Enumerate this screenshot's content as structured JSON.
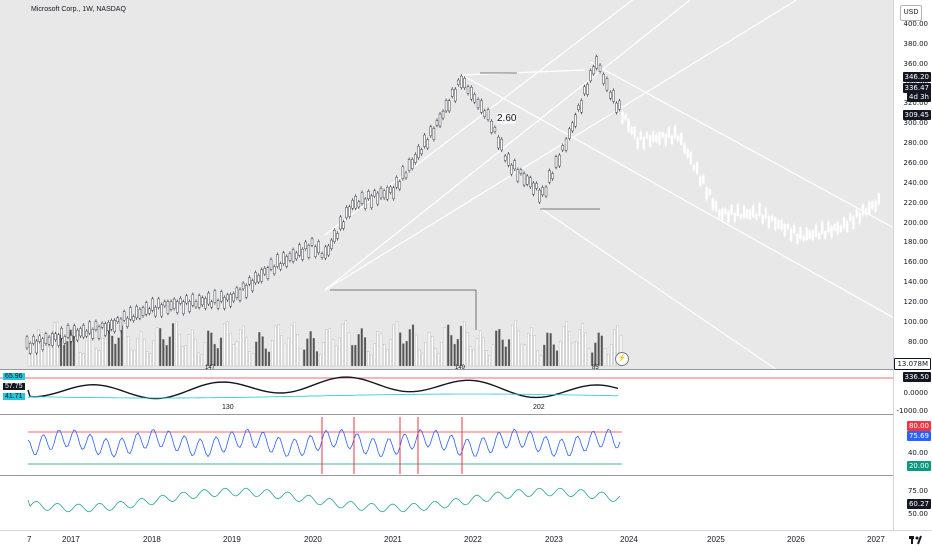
{
  "header": {
    "title": "Microsoft Corp., 1W, NASDAQ",
    "currency": "USD"
  },
  "price_axis": {
    "ticks": [
      "400.00",
      "380.00",
      "360.00",
      "340.00",
      "320.00",
      "300.00",
      "280.00",
      "260.00",
      "240.00",
      "220.00",
      "200.00",
      "180.00",
      "160.00",
      "140.00",
      "120.00",
      "100.00",
      "80.00"
    ],
    "tags": {
      "last_price": "346.20",
      "current_price": "336.47",
      "countdown": "4d 3h",
      "level": "309.45",
      "volume": "13.078M"
    }
  },
  "annotations": {
    "pitchfork_value": "2.60",
    "vol_marker_1": "147",
    "vol_marker_2": "149",
    "vol_marker_3": "85"
  },
  "osc1": {
    "left_vals": [
      "65.96",
      "57.75",
      "41.71"
    ],
    "right_vals": [
      "336.50",
      "0.0000",
      "-1000.00"
    ],
    "mid_labels": [
      "130",
      "202"
    ],
    "colors": {
      "box1": "#26c6da",
      "box2": "#131722",
      "box3": "#26c6da"
    }
  },
  "rsi": {
    "right_vals": [
      "80.00",
      "75.69",
      "40.00",
      "20.00"
    ],
    "colors": {
      "upper": "#f23645",
      "value": "#2962ff",
      "lower": "#089981"
    }
  },
  "osc3": {
    "right_vals": [
      "75.00",
      "60.27",
      "50.00"
    ]
  },
  "time_axis": {
    "labels": [
      "7",
      "2017",
      "2018",
      "2019",
      "2020",
      "2021",
      "2022",
      "2023",
      "2024",
      "2025",
      "2026",
      "2027"
    ]
  },
  "icons": [
    "tradingview-logo-icon",
    "replay-icon"
  ],
  "chart_data": {
    "type": "line",
    "x": [
      "2016-07",
      "2017-01",
      "2017-07",
      "2018-01",
      "2018-07",
      "2019-01",
      "2019-07",
      "2020-01",
      "2020-03",
      "2020-07",
      "2021-01",
      "2021-07",
      "2021-11",
      "2022-03",
      "2022-06",
      "2022-11",
      "2023-03",
      "2023-07",
      "2023-09",
      "2024-01",
      "2024-07",
      "2025-01",
      "2025-07",
      "2026-01",
      "2026-07",
      "2027-01"
    ],
    "series": [
      {
        "values": [
          52,
          63,
          72,
          92,
          98,
          102,
          136,
          160,
          150,
          205,
          220,
          285,
          340,
          300,
          250,
          215,
          280,
          360,
          325,
          275,
          280,
          195,
          195,
          170,
          180,
          210
        ]
      }
    ],
    "ylim": [
      60,
      405
    ],
    "ylabel": "",
    "xlabel": ""
  }
}
